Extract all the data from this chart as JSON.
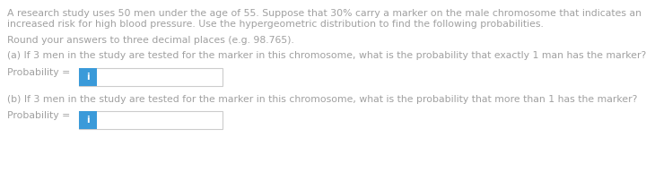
{
  "bg_color": "#ffffff",
  "text_color": "#a0a0a0",
  "box_color": "#ffffff",
  "box_edge_color": "#cccccc",
  "icon_color": "#3a9ad9",
  "icon_text_color": "#ffffff",
  "line1": "A research study uses 50 men under the age of 55. Suppose that 30% carry a marker on the male chromosome that indicates an",
  "line2": "increased risk for high blood pressure. Use the hypergeometric distribution to find the following probabilities.",
  "line3": "Round your answers to three decimal places (e.g. 98.765).",
  "line4a": "(a) If 3 men in the study are tested for the marker in this chromosome, what is the probability that exactly 1 man has the marker?",
  "line4b": "(b) If 3 men in the study are tested for the marker in this chromosome, what is the probability that more than 1 has the marker?",
  "prob_label": "Probability = ",
  "icon_char": "i",
  "font_size_body": 7.8,
  "font_size_label": 7.8,
  "font_size_icon": 7.5,
  "fig_width": 7.49,
  "fig_height": 2.02,
  "dpi": 100
}
